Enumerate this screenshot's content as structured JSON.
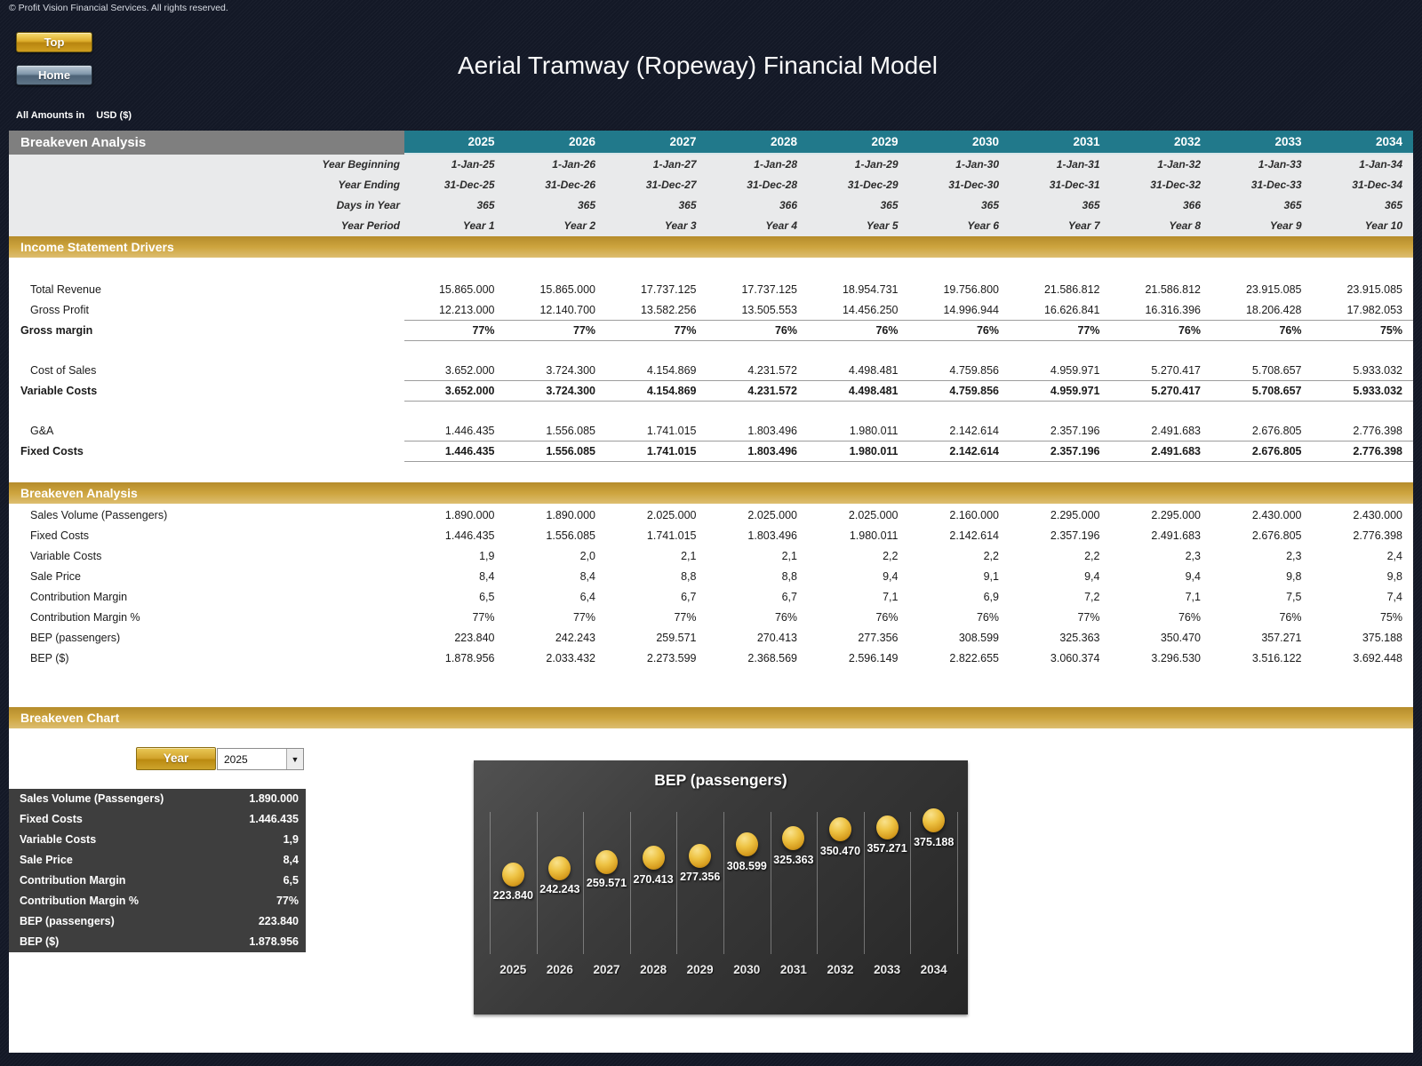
{
  "page": {
    "copyright": "© Profit Vision Financial Services. All rights reserved.",
    "title": "Aerial Tramway (Ropeway) Financial Model",
    "amounts_note_label": "All Amounts in",
    "amounts_note_unit": "USD ($)",
    "buttons": {
      "top": "Top",
      "home": "Home"
    }
  },
  "colors": {
    "page_background": "#131826",
    "header_gray": "#7f7f7f",
    "header_teal": "#21798b",
    "section_gold": "#cda43e",
    "subheader_gray": "#e9eaeb",
    "summary_panel": "#3e3e3e",
    "chart_marker_gold": "#e2ae2f"
  },
  "table": {
    "header_title": "Breakeven Analysis",
    "years": [
      "2025",
      "2026",
      "2027",
      "2028",
      "2029",
      "2030",
      "2031",
      "2032",
      "2033",
      "2034"
    ],
    "subheader_rows": [
      {
        "label": "Year Beginning",
        "values": [
          "1-Jan-25",
          "1-Jan-26",
          "1-Jan-27",
          "1-Jan-28",
          "1-Jan-29",
          "1-Jan-30",
          "1-Jan-31",
          "1-Jan-32",
          "1-Jan-33",
          "1-Jan-34"
        ]
      },
      {
        "label": "Year Ending",
        "values": [
          "31-Dec-25",
          "31-Dec-26",
          "31-Dec-27",
          "31-Dec-28",
          "31-Dec-29",
          "31-Dec-30",
          "31-Dec-31",
          "31-Dec-32",
          "31-Dec-33",
          "31-Dec-34"
        ]
      },
      {
        "label": "Days in Year",
        "values": [
          "365",
          "365",
          "365",
          "366",
          "365",
          "365",
          "365",
          "366",
          "365",
          "365"
        ]
      },
      {
        "label": "Year Period",
        "values": [
          "Year 1",
          "Year 2",
          "Year 3",
          "Year 4",
          "Year 5",
          "Year 6",
          "Year 7",
          "Year 8",
          "Year 9",
          "Year 10"
        ]
      }
    ],
    "sections": [
      {
        "title": "Income Statement Drivers",
        "rows": [
          {
            "label": "Total Revenue",
            "emphasis": false,
            "underline": false,
            "gap_before": false,
            "values": [
              "15.865.000",
              "15.865.000",
              "17.737.125",
              "17.737.125",
              "18.954.731",
              "19.756.800",
              "21.586.812",
              "21.586.812",
              "23.915.085",
              "23.915.085"
            ]
          },
          {
            "label": "Gross Profit",
            "emphasis": false,
            "underline": true,
            "gap_before": false,
            "values": [
              "12.213.000",
              "12.140.700",
              "13.582.256",
              "13.505.553",
              "14.456.250",
              "14.996.944",
              "16.626.841",
              "16.316.396",
              "18.206.428",
              "17.982.053"
            ]
          },
          {
            "label": "Gross margin",
            "emphasis": true,
            "underline": true,
            "gap_before": false,
            "values": [
              "77%",
              "77%",
              "77%",
              "76%",
              "76%",
              "76%",
              "77%",
              "76%",
              "76%",
              "75%"
            ]
          },
          {
            "label": "Cost of Sales",
            "emphasis": false,
            "underline": true,
            "gap_before": true,
            "values": [
              "3.652.000",
              "3.724.300",
              "4.154.869",
              "4.231.572",
              "4.498.481",
              "4.759.856",
              "4.959.971",
              "5.270.417",
              "5.708.657",
              "5.933.032"
            ]
          },
          {
            "label": "Variable Costs",
            "emphasis": true,
            "underline": true,
            "gap_before": false,
            "values": [
              "3.652.000",
              "3.724.300",
              "4.154.869",
              "4.231.572",
              "4.498.481",
              "4.759.856",
              "4.959.971",
              "5.270.417",
              "5.708.657",
              "5.933.032"
            ]
          },
          {
            "label": "G&A",
            "emphasis": false,
            "underline": true,
            "gap_before": true,
            "values": [
              "1.446.435",
              "1.556.085",
              "1.741.015",
              "1.803.496",
              "1.980.011",
              "2.142.614",
              "2.357.196",
              "2.491.683",
              "2.676.805",
              "2.776.398"
            ]
          },
          {
            "label": "Fixed Costs",
            "emphasis": true,
            "underline": true,
            "gap_before": false,
            "values": [
              "1.446.435",
              "1.556.085",
              "1.741.015",
              "1.803.496",
              "1.980.011",
              "2.142.614",
              "2.357.196",
              "2.491.683",
              "2.676.805",
              "2.776.398"
            ]
          }
        ]
      },
      {
        "title": "Breakeven Analysis",
        "rows": [
          {
            "label": "Sales Volume (Passengers)",
            "emphasis": false,
            "underline": false,
            "gap_before": false,
            "values": [
              "1.890.000",
              "1.890.000",
              "2.025.000",
              "2.025.000",
              "2.025.000",
              "2.160.000",
              "2.295.000",
              "2.295.000",
              "2.430.000",
              "2.430.000"
            ]
          },
          {
            "label": "Fixed Costs",
            "emphasis": false,
            "underline": false,
            "gap_before": false,
            "values": [
              "1.446.435",
              "1.556.085",
              "1.741.015",
              "1.803.496",
              "1.980.011",
              "2.142.614",
              "2.357.196",
              "2.491.683",
              "2.676.805",
              "2.776.398"
            ]
          },
          {
            "label": "Variable Costs",
            "emphasis": false,
            "underline": false,
            "gap_before": false,
            "values": [
              "1,9",
              "2,0",
              "2,1",
              "2,1",
              "2,2",
              "2,2",
              "2,2",
              "2,3",
              "2,3",
              "2,4"
            ]
          },
          {
            "label": "Sale Price",
            "emphasis": false,
            "underline": false,
            "gap_before": false,
            "values": [
              "8,4",
              "8,4",
              "8,8",
              "8,8",
              "9,4",
              "9,1",
              "9,4",
              "9,4",
              "9,8",
              "9,8"
            ]
          },
          {
            "label": "Contribution Margin",
            "emphasis": false,
            "underline": false,
            "gap_before": false,
            "values": [
              "6,5",
              "6,4",
              "6,7",
              "6,7",
              "7,1",
              "6,9",
              "7,2",
              "7,1",
              "7,5",
              "7,4"
            ]
          },
          {
            "label": "Contribution Margin %",
            "emphasis": false,
            "underline": false,
            "gap_before": false,
            "values": [
              "77%",
              "77%",
              "77%",
              "76%",
              "76%",
              "76%",
              "77%",
              "76%",
              "76%",
              "75%"
            ]
          },
          {
            "label": "BEP (passengers)",
            "emphasis": false,
            "underline": false,
            "gap_before": false,
            "values": [
              "223.840",
              "242.243",
              "259.571",
              "270.413",
              "277.356",
              "308.599",
              "325.363",
              "350.470",
              "357.271",
              "375.188"
            ]
          },
          {
            "label": "BEP ($)",
            "emphasis": false,
            "underline": false,
            "gap_before": false,
            "values": [
              "1.878.956",
              "2.033.432",
              "2.273.599",
              "2.368.569",
              "2.596.149",
              "2.822.655",
              "3.060.374",
              "3.296.530",
              "3.516.122",
              "3.692.448"
            ]
          }
        ]
      }
    ]
  },
  "chart_section": {
    "title": "Breakeven Chart",
    "year_selector": {
      "button_label": "Year",
      "selected": "2025"
    },
    "summary": {
      "rows": [
        {
          "label": "Sales Volume (Passengers)",
          "value": "1.890.000"
        },
        {
          "label": "Fixed Costs",
          "value": "1.446.435"
        },
        {
          "label": "Variable Costs",
          "value": "1,9"
        },
        {
          "label": "Sale Price",
          "value": "8,4"
        },
        {
          "label": "Contribution Margin",
          "value": "6,5"
        },
        {
          "label": "Contribution Margin %",
          "value": "77%"
        },
        {
          "label": "BEP (passengers)",
          "value": "223.840"
        },
        {
          "label": "BEP ($)",
          "value": "1.878.956"
        }
      ]
    }
  },
  "chart_data": {
    "type": "scatter",
    "title": "BEP (passengers)",
    "categories": [
      "2025",
      "2026",
      "2027",
      "2028",
      "2029",
      "2030",
      "2031",
      "2032",
      "2033",
      "2034"
    ],
    "values": [
      223840,
      242243,
      259571,
      270413,
      277356,
      308599,
      325363,
      350470,
      357271,
      375188
    ],
    "point_labels": [
      "223.840",
      "242.243",
      "259.571",
      "270.413",
      "277.356",
      "308.599",
      "325.363",
      "350.470",
      "357.271",
      "375.188"
    ],
    "xlabel": "",
    "ylabel": "",
    "ylim": [
      0,
      400000
    ],
    "grid": "vertical-category-dividers",
    "legend": "none",
    "marker_color": "#e2ae2f",
    "background": "dark-gradient"
  }
}
